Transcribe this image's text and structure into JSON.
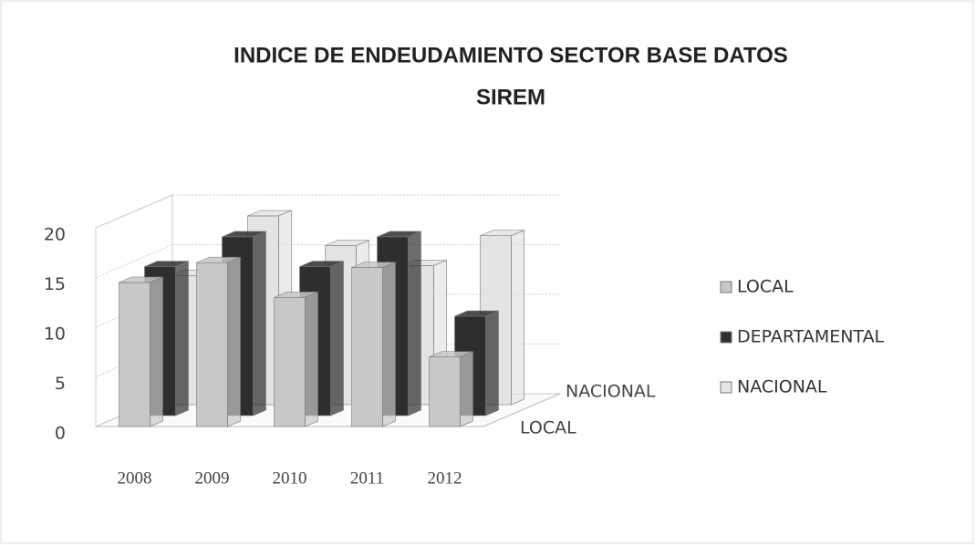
{
  "chart_data": {
    "type": "bar3d",
    "title": "INDICE DE  ENDEUDAMIENTO SECTOR BASE DATOS",
    "subtitle": "SIREM",
    "categories": [
      "2008",
      "2009",
      "2010",
      "2011",
      "2012"
    ],
    "series": [
      {
        "name": "LOCAL",
        "color": "#c8c8c8",
        "values": [
          14.5,
          16.5,
          13,
          16,
          7
        ]
      },
      {
        "name": "DEPARTAMENTAL",
        "color": "#2e2e2e",
        "values": [
          15,
          18,
          15,
          18,
          10
        ]
      },
      {
        "name": "NACIONAL",
        "color": "#e4e4e4",
        "values": [
          13,
          19,
          16,
          14,
          17
        ]
      }
    ],
    "depth_labels": [
      "LOCAL",
      "NACIONAL"
    ],
    "ylim": [
      0,
      20
    ],
    "yticks": [
      0,
      5,
      10,
      15,
      20
    ],
    "grid": true,
    "legend": "right"
  }
}
